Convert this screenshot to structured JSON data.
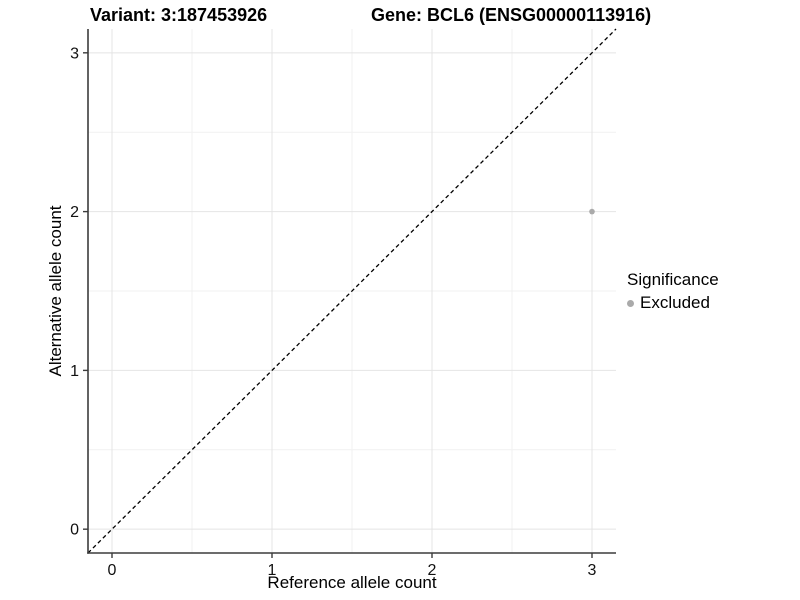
{
  "chart_data": {
    "type": "scatter",
    "title_left": "Variant: 3:187453926",
    "title_right": "Gene: BCL6 (ENSG00000113916)",
    "xlabel": "Reference allele count",
    "ylabel": "Alternative allele count",
    "xlim": [
      -0.15,
      3.15
    ],
    "ylim": [
      -0.15,
      3.15
    ],
    "x_ticks": [
      0,
      1,
      2,
      3
    ],
    "y_ticks": [
      0,
      1,
      2,
      3
    ],
    "minor_ticks": [
      0.5,
      1.5,
      2.5
    ],
    "grid": "major+minor",
    "series": [
      {
        "name": "Excluded",
        "color": "#aaaaaa",
        "points": [
          {
            "x": 3,
            "y": 2
          }
        ]
      }
    ],
    "reference_line": {
      "kind": "identity y=x",
      "style": "dashed",
      "color": "#000000"
    },
    "legend": {
      "position": "right",
      "title": "Significance",
      "entries": [
        {
          "label": "Excluded",
          "color": "#aaaaaa"
        }
      ]
    },
    "colors": {
      "major_grid": "#e4e4e4",
      "minor_grid": "#f1f1f1",
      "axis_line": "#3c3c3c",
      "tick_label": "#111111"
    }
  }
}
